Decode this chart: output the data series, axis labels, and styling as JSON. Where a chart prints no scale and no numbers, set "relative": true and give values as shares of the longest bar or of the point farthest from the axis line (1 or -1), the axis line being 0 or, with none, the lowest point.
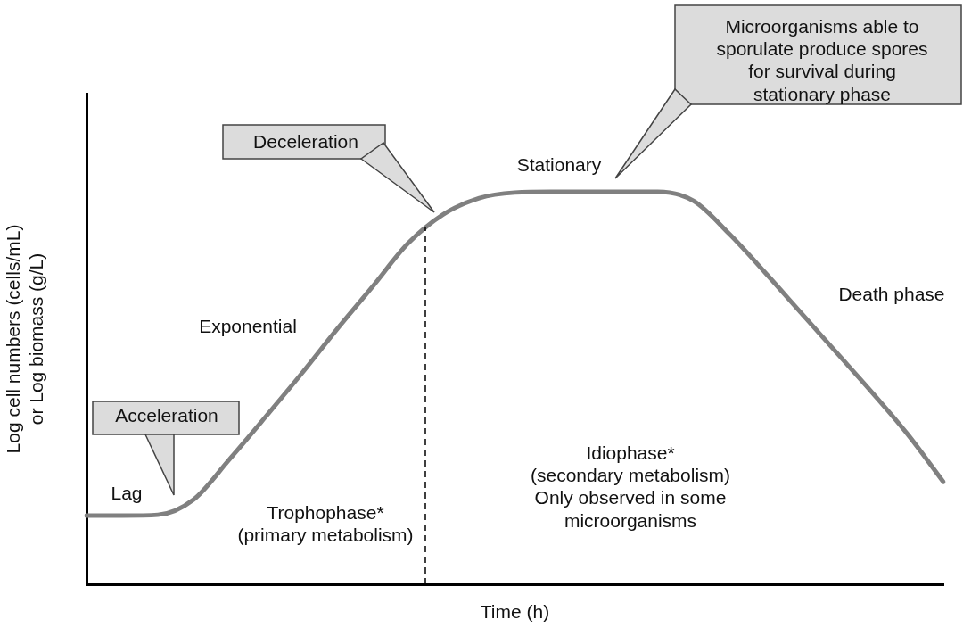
{
  "chart_data": {
    "type": "line",
    "relative": true,
    "xlabel": "Time (h)",
    "ylabel": "Log cell numbers (cells/mL)\nor Log biomass (g/L)",
    "categories": [
      null,
      null,
      null,
      null,
      null,
      null,
      null,
      null,
      null,
      null,
      null,
      null,
      null,
      null,
      null,
      null,
      null,
      null,
      null,
      null,
      null,
      null,
      null,
      null,
      null
    ],
    "series": [
      {
        "color": "#808080",
        "values": [
          0.175,
          0.175,
          0.177,
          0.216,
          0.318,
          0.425,
          0.534,
          0.648,
          0.757,
          0.868,
          0.943,
          0.984,
          0.998,
          1,
          1,
          1,
          1,
          0.977,
          0.893,
          0.795,
          0.693,
          0.591,
          0.489,
          0.382,
          0.261
        ]
      }
    ],
    "annotations": [
      "Lag",
      "Exponential",
      "Stationary",
      "Death phase",
      "Trophophase*\n(primary metabolism)",
      "Idiophase*\n(secondary metabolism)\nOnly observed in some\nmicroorganisms",
      "Acceleration",
      "Deceleration",
      "Microorganisms able to\nsporulate produce spores\nfor survival during\nstationary phase"
    ],
    "legend": false,
    "grid": false,
    "marker": "none",
    "line_style": "solid"
  }
}
